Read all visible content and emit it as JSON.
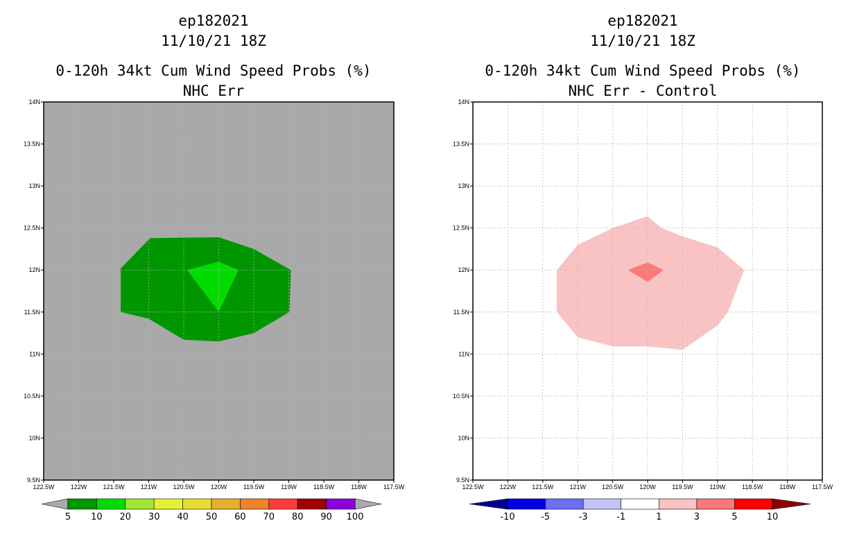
{
  "chart_data": [
    {
      "type": "contour-map",
      "title": [
        "ep182021",
        "11/10/21 18Z",
        "0-120h 34kt Cum Wind Speed Probs (%)",
        "NHC Err"
      ],
      "lon_ticks": [
        "122.5W",
        "122W",
        "121.5W",
        "121W",
        "120.5W",
        "120W",
        "119.5W",
        "119W",
        "118.5W",
        "118W",
        "117.5W"
      ],
      "lat_ticks": [
        "9.5N",
        "10N",
        "10.5N",
        "11N",
        "11.5N",
        "12N",
        "12.5N",
        "13N",
        "13.5N",
        "14N"
      ],
      "xlim": [
        -122.5,
        -117.5
      ],
      "ylim": [
        9.5,
        14
      ],
      "background_color": "#a9a9a9",
      "contours": [
        {
          "level": "5-10",
          "color": "#009600",
          "polygon": [
            [
              -121.4,
              12.02
            ],
            [
              -120.98,
              12.38
            ],
            [
              -120.0,
              12.39
            ],
            [
              -119.5,
              12.25
            ],
            [
              -118.97,
              12.0
            ],
            [
              -118.99,
              11.5
            ],
            [
              -119.5,
              11.25
            ],
            [
              -120.0,
              11.15
            ],
            [
              -120.5,
              11.17
            ],
            [
              -121.0,
              11.42
            ],
            [
              -121.4,
              11.5
            ]
          ]
        },
        {
          "level": "10-20",
          "color": "#00dc00",
          "polygon": [
            [
              -120.45,
              12.0
            ],
            [
              -120.0,
              12.1
            ],
            [
              -119.72,
              12.0
            ],
            [
              -120.0,
              11.5
            ]
          ]
        }
      ],
      "colorbar": {
        "labels": [
          "5",
          "10",
          "20",
          "30",
          "40",
          "50",
          "60",
          "70",
          "80",
          "90",
          "100"
        ],
        "colors": [
          "#009600",
          "#00dc00",
          "#a0e632",
          "#e6f032",
          "#e6dc32",
          "#e6af2d",
          "#f08228",
          "#fa3c3c",
          "#a00000",
          "#8c00dc"
        ],
        "end_colors": [
          "#a9a9a9",
          "#a9a9a9"
        ]
      }
    },
    {
      "type": "contour-map",
      "title": [
        "ep182021",
        "11/10/21 18Z",
        "0-120h 34kt Cum Wind Speed Probs (%)",
        "NHC Err - Control"
      ],
      "lon_ticks": [
        "122.5W",
        "122W",
        "121.5W",
        "121W",
        "120.5W",
        "120W",
        "119.5W",
        "119W",
        "118.5W",
        "118W",
        "117.5W"
      ],
      "lat_ticks": [
        "9.5N",
        "10N",
        "10.5N",
        "11N",
        "11.5N",
        "12N",
        "12.5N",
        "13N",
        "13.5N",
        "14N"
      ],
      "xlim": [
        -122.5,
        -117.5
      ],
      "ylim": [
        9.5,
        14
      ],
      "background_color": "#ffffff",
      "grid": true,
      "contours": [
        {
          "level": "1-3",
          "color": "#fac3c3",
          "polygon": [
            [
              -121.3,
              12.0
            ],
            [
              -121.0,
              12.3
            ],
            [
              -120.5,
              12.5
            ],
            [
              -120.0,
              12.64
            ],
            [
              -119.8,
              12.5
            ],
            [
              -119.5,
              12.4
            ],
            [
              -119.0,
              12.27
            ],
            [
              -118.62,
              12.0
            ],
            [
              -118.85,
              11.5
            ],
            [
              -119.0,
              11.34
            ],
            [
              -119.5,
              11.05
            ],
            [
              -120.0,
              11.09
            ],
            [
              -120.5,
              11.09
            ],
            [
              -121.0,
              11.2
            ],
            [
              -121.3,
              11.5
            ]
          ]
        },
        {
          "level": "3-5",
          "color": "#fa7878",
          "polygon": [
            [
              -120.28,
              12.0
            ],
            [
              -120.0,
              12.09
            ],
            [
              -119.77,
              12.0
            ],
            [
              -120.0,
              11.86
            ]
          ]
        }
      ],
      "colorbar": {
        "labels": [
          "-10",
          "-5",
          "-3",
          "-1",
          "1",
          "3",
          "5",
          "10"
        ],
        "colors": [
          "#0000e6",
          "#6e6ef0",
          "#c3c3fa",
          "#ffffff",
          "#fac3c3",
          "#fa7878",
          "#ff0000"
        ],
        "end_colors": [
          "#00008c",
          "#8c0000"
        ]
      }
    }
  ]
}
